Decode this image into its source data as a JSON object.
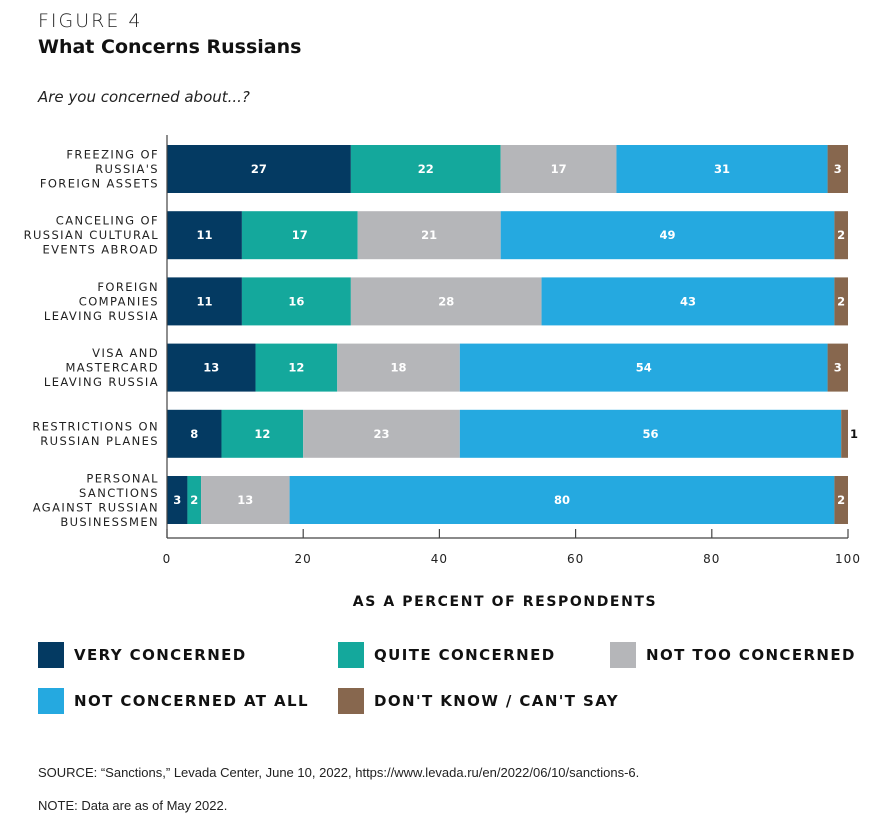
{
  "header": {
    "figure_label": "FIGURE 4",
    "title": "What Concerns Russians",
    "subtitle": "Are you concerned about...?"
  },
  "chart_data": {
    "type": "bar",
    "orientation": "horizontal",
    "stacked": true,
    "title": "What Concerns Russians",
    "subtitle": "Are you concerned about...?",
    "xlabel": "AS A PERCENT OF RESPONDENTS",
    "ylabel": "",
    "xlim": [
      0,
      100
    ],
    "xticks": [
      0,
      20,
      40,
      60,
      80,
      100
    ],
    "grid": false,
    "legend_position": "bottom",
    "categories": [
      [
        "FREEZING OF",
        "RUSSIA'S",
        "FOREIGN ASSETS"
      ],
      [
        "CANCELING OF",
        "RUSSIAN CULTURAL",
        "EVENTS ABROAD"
      ],
      [
        "FOREIGN",
        "COMPANIES",
        "LEAVING RUSSIA"
      ],
      [
        "VISA AND",
        "MASTERCARD",
        "LEAVING RUSSIA"
      ],
      [
        "RESTRICTIONS ON",
        "RUSSIAN PLANES"
      ],
      [
        "PERSONAL",
        "SANCTIONS",
        "AGAINST RUSSIAN",
        "BUSINESSMEN"
      ]
    ],
    "series": [
      {
        "name": "VERY CONCERNED",
        "color": "#043a62",
        "values": [
          27,
          11,
          11,
          13,
          8,
          3
        ]
      },
      {
        "name": "QUITE CONCERNED",
        "color": "#14a89c",
        "values": [
          22,
          17,
          16,
          12,
          12,
          2
        ]
      },
      {
        "name": "NOT TOO CONCERNED",
        "color": "#b5b6b9",
        "values": [
          17,
          21,
          28,
          18,
          23,
          13
        ]
      },
      {
        "name": "NOT CONCERNED AT ALL",
        "color": "#25a9e0",
        "values": [
          31,
          49,
          43,
          54,
          56,
          80
        ]
      },
      {
        "name": "DON'T KNOW / CAN'T SAY",
        "color": "#87674e",
        "values": [
          3,
          2,
          2,
          3,
          1,
          2
        ]
      }
    ]
  },
  "footer": {
    "source": "SOURCE: “Sanctions,” Levada Center, June 10, 2022, https://www.levada.ru/en/2022/06/10/sanctions-6.",
    "note": "NOTE: Data are as of May 2022."
  }
}
